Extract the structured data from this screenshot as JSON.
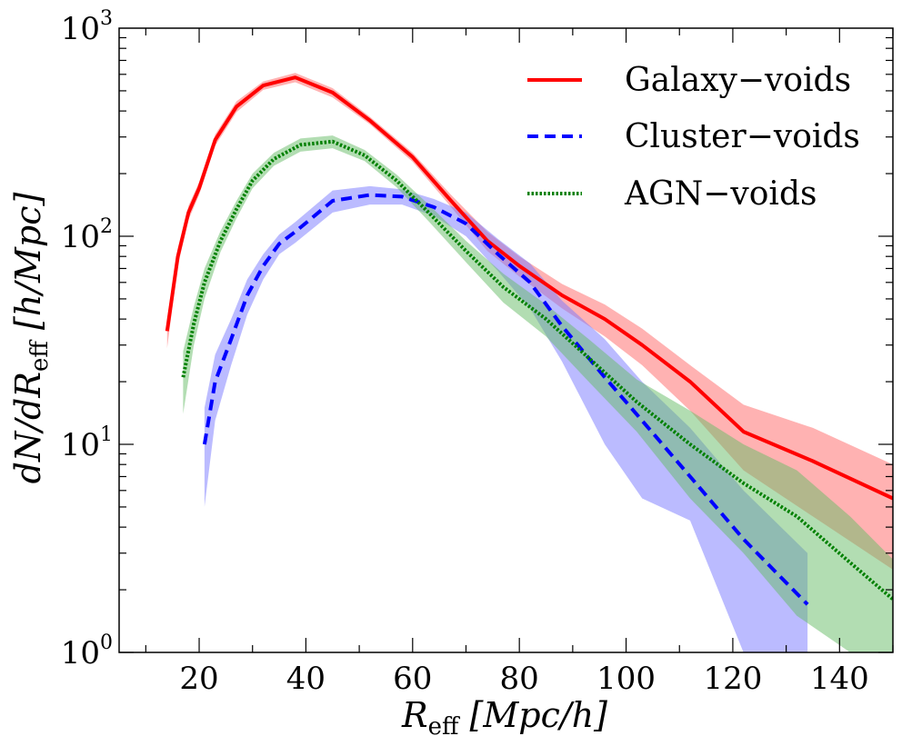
{
  "chart_data": {
    "type": "line",
    "title": "",
    "xlabel": "R_eff [Mpc/h]",
    "xlabel_parts": {
      "sym": "R",
      "sub": "eff",
      "rest": " [Mpc/h]"
    },
    "ylabel": "dN/dR_eff [h/Mpc]",
    "ylabel_parts": {
      "pre": "dN/dR",
      "sub": "eff",
      "rest": " [h/Mpc]"
    },
    "xlim": [
      5,
      150
    ],
    "ylim": [
      1,
      1000
    ],
    "yscale": "log",
    "xticks": [
      20,
      40,
      60,
      80,
      100,
      120,
      140
    ],
    "yticks": [
      {
        "base": "10",
        "exp": "0",
        "value": 1
      },
      {
        "base": "10",
        "exp": "1",
        "value": 10
      },
      {
        "base": "10",
        "exp": "2",
        "value": 100
      },
      {
        "base": "10",
        "exp": "3",
        "value": 1000
      }
    ],
    "legend_position": "top-right",
    "series": [
      {
        "name": "Galaxy−voids",
        "color": "#ff0000",
        "band_color": "#ff6666",
        "dash": "solid",
        "x": [
          14,
          16,
          18,
          20,
          23,
          27,
          32,
          38,
          45,
          52,
          60,
          67,
          74,
          80,
          88,
          96,
          103,
          112,
          122,
          135,
          150
        ],
        "y": [
          35,
          80,
          130,
          170,
          290,
          420,
          530,
          580,
          490,
          360,
          240,
          150,
          95,
          72,
          52,
          40,
          30,
          20,
          11.5,
          8.3,
          5.5
        ],
        "lo": [
          29,
          72,
          120,
          158,
          272,
          395,
          505,
          550,
          465,
          345,
          228,
          140,
          85,
          64,
          45,
          33,
          24,
          14.5,
          7.5,
          4.5,
          2.5
        ],
        "hi": [
          40,
          88,
          140,
          182,
          308,
          445,
          555,
          610,
          515,
          375,
          252,
          160,
          105,
          80,
          59,
          47,
          36,
          24,
          15.5,
          12,
          8
        ]
      },
      {
        "name": "Cluster−voids",
        "color": "#0000ff",
        "band_color": "#7777ff",
        "dash": "dashed",
        "x": [
          21,
          23,
          26,
          29,
          32,
          35,
          38,
          45,
          52,
          58,
          64,
          70,
          76,
          82,
          88,
          96,
          103,
          112,
          122,
          134
        ],
        "y": [
          10,
          20,
          32,
          52,
          72,
          92,
          105,
          148,
          158,
          155,
          138,
          115,
          82,
          60,
          37,
          21,
          13,
          7,
          3.5,
          1.7
        ],
        "lo": [
          5,
          13,
          24,
          42,
          62,
          82,
          93,
          130,
          142,
          142,
          125,
          100,
          68,
          45,
          25,
          10,
          5.5,
          4.3,
          1,
          1
        ],
        "hi": [
          15,
          27,
          40,
          62,
          82,
          102,
          117,
          166,
          174,
          168,
          151,
          130,
          97,
          74,
          49,
          32,
          20,
          12,
          6,
          3
        ]
      },
      {
        "name": "AGN−voids",
        "color": "#008000",
        "band_color": "#66bb66",
        "dash": "dotted",
        "x": [
          17,
          19,
          21,
          24,
          27,
          30,
          34,
          39,
          45,
          51,
          57,
          63,
          70,
          77,
          85,
          93,
          102,
          112,
          122,
          132,
          142,
          150
        ],
        "y": [
          21,
          38,
          60,
          95,
          135,
          185,
          235,
          275,
          285,
          245,
          185,
          130,
          85,
          57,
          40,
          26,
          16,
          10,
          6.5,
          4.5,
          2.7,
          1.8
        ],
        "lo": [
          14,
          30,
          50,
          84,
          122,
          170,
          218,
          255,
          265,
          230,
          172,
          118,
          75,
          48,
          33,
          20,
          11.5,
          5.5,
          3,
          1.5,
          1,
          1
        ],
        "hi": [
          28,
          46,
          70,
          106,
          148,
          200,
          252,
          295,
          305,
          260,
          198,
          142,
          95,
          66,
          47,
          32,
          20.5,
          14.5,
          10,
          7.5,
          4.5,
          2.8
        ]
      }
    ]
  }
}
